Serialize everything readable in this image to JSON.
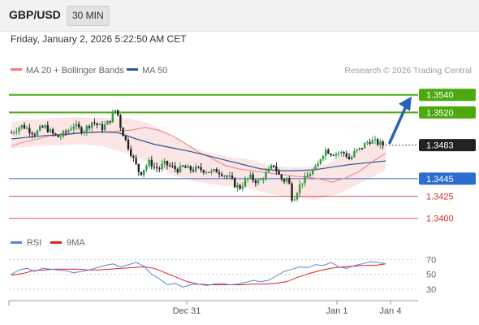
{
  "header": {
    "pair": "GBP/USD",
    "timeframe": "30 MIN"
  },
  "timestamp": "Friday, January 2, 2026 5:22:50 AM CET",
  "legend": {
    "ma20": {
      "label": "MA 20 + Bollinger Bands",
      "color": "#ee8080"
    },
    "ma50": {
      "label": "MA 50",
      "color": "#2a5a9a"
    },
    "rsi": {
      "label": "RSI",
      "color": "#5a82d8"
    },
    "rsi_ma": {
      "label": "9MA",
      "color": "#dd2222"
    }
  },
  "copyright": "Research © 2026 Trading Central",
  "chart_data": [
    {
      "type": "candlestick",
      "title": "GBP/USD",
      "timeframe": "30 MIN",
      "y_range": [
        1.3385,
        1.356
      ],
      "x_ticks": [
        "Dec 31",
        "Jan 1",
        "Jan 4"
      ],
      "last_price": 1.3483,
      "levels": [
        {
          "kind": "resistance",
          "value": 1.354,
          "label": "1.3540",
          "color": "#4caa10"
        },
        {
          "kind": "resistance",
          "value": 1.352,
          "label": "1.3520",
          "color": "#4caa10"
        },
        {
          "kind": "pivot",
          "value": 1.3445,
          "label": "1.3445",
          "color": "#2d6cd0"
        },
        {
          "kind": "support",
          "value": 1.3425,
          "label": "1.3425",
          "color": "#d03030"
        },
        {
          "kind": "support",
          "value": 1.34,
          "label": "1.3400",
          "color": "#d03030"
        }
      ],
      "arrow_direction": "up",
      "price_path": [
        1.3497,
        1.3501,
        1.3505,
        1.3503,
        1.3499,
        1.3496,
        1.3501,
        1.3504,
        1.3499,
        1.3494,
        1.3492,
        1.3496,
        1.35,
        1.3506,
        1.3502,
        1.3499,
        1.3504,
        1.351,
        1.3506,
        1.3502,
        1.3507,
        1.3514,
        1.3525,
        1.3502,
        1.3488,
        1.3475,
        1.3462,
        1.345,
        1.3458,
        1.3464,
        1.3458,
        1.3456,
        1.3462,
        1.346,
        1.3457,
        1.3455,
        1.3458,
        1.3456,
        1.3455,
        1.3456,
        1.3455,
        1.3454,
        1.3452,
        1.3454,
        1.3452,
        1.3448,
        1.3445,
        1.3437,
        1.3435,
        1.3442,
        1.3447,
        1.3443,
        1.3441,
        1.3448,
        1.3454,
        1.3461,
        1.345,
        1.3442,
        1.3446,
        1.342,
        1.3432,
        1.3442,
        1.3446,
        1.3454,
        1.3456,
        1.3471,
        1.3478,
        1.3474,
        1.3474,
        1.3474,
        1.3474,
        1.3466,
        1.3475,
        1.3478,
        1.3483,
        1.3488,
        1.3487,
        1.3485,
        1.3483
      ],
      "ma20_path": [
        1.3482,
        1.3487,
        1.349,
        1.3494,
        1.3496,
        1.3497,
        1.3497,
        1.3498,
        1.3499,
        1.35,
        1.3503,
        1.35,
        1.3494,
        1.3485,
        1.3475,
        1.3468,
        1.346,
        1.3456,
        1.3454,
        1.3452,
        1.345,
        1.3448,
        1.3447,
        1.3445,
        1.3441,
        1.3446,
        1.3453,
        1.3464,
        1.3474
      ],
      "ma50_path": [
        1.349,
        1.3492,
        1.3494,
        1.3495,
        1.3497,
        1.3498,
        1.3497,
        1.349,
        1.3484,
        1.348,
        1.3476,
        1.3471,
        1.3466,
        1.3461,
        1.3456,
        1.3454,
        1.3454,
        1.3455,
        1.3458,
        1.3461,
        1.3463,
        1.3465
      ],
      "bb_upper": [
        1.3509,
        1.3512,
        1.3513,
        1.3515,
        1.3514,
        1.3514,
        1.3513,
        1.3508,
        1.3495,
        1.3483,
        1.3474,
        1.347,
        1.3467,
        1.3461,
        1.3458,
        1.3458,
        1.3461,
        1.3472,
        1.3481,
        1.3487
      ],
      "bb_lower": [
        1.3479,
        1.3482,
        1.3483,
        1.3484,
        1.3481,
        1.3473,
        1.3462,
        1.3448,
        1.3441,
        1.3437,
        1.3435,
        1.3428,
        1.3424,
        1.3421,
        1.3428,
        1.3441,
        1.3455
      ]
    },
    {
      "type": "line",
      "title": "RSI",
      "y_range": [
        18,
        78
      ],
      "y_ticks": [
        30,
        50,
        70
      ],
      "series": [
        {
          "name": "RSI",
          "values": [
            50,
            56,
            58,
            54,
            58,
            57,
            56,
            55,
            52,
            54,
            56,
            59,
            62,
            64,
            60,
            63,
            66,
            61,
            50,
            44,
            36,
            38,
            33,
            36,
            37,
            35,
            37,
            38,
            36,
            37,
            39,
            42,
            40,
            42,
            48,
            54,
            57,
            60,
            59,
            63,
            62,
            66,
            60,
            58,
            62,
            64,
            67,
            66,
            64
          ]
        },
        {
          "name": "9MA",
          "values": [
            49,
            51,
            55,
            56,
            57,
            57,
            57,
            56,
            56,
            57,
            58,
            59,
            60,
            58,
            52,
            46,
            40,
            37,
            36,
            36,
            36,
            36,
            37,
            37,
            38,
            40,
            46,
            51,
            55,
            58,
            60,
            61,
            62,
            62,
            64
          ]
        }
      ]
    }
  ]
}
